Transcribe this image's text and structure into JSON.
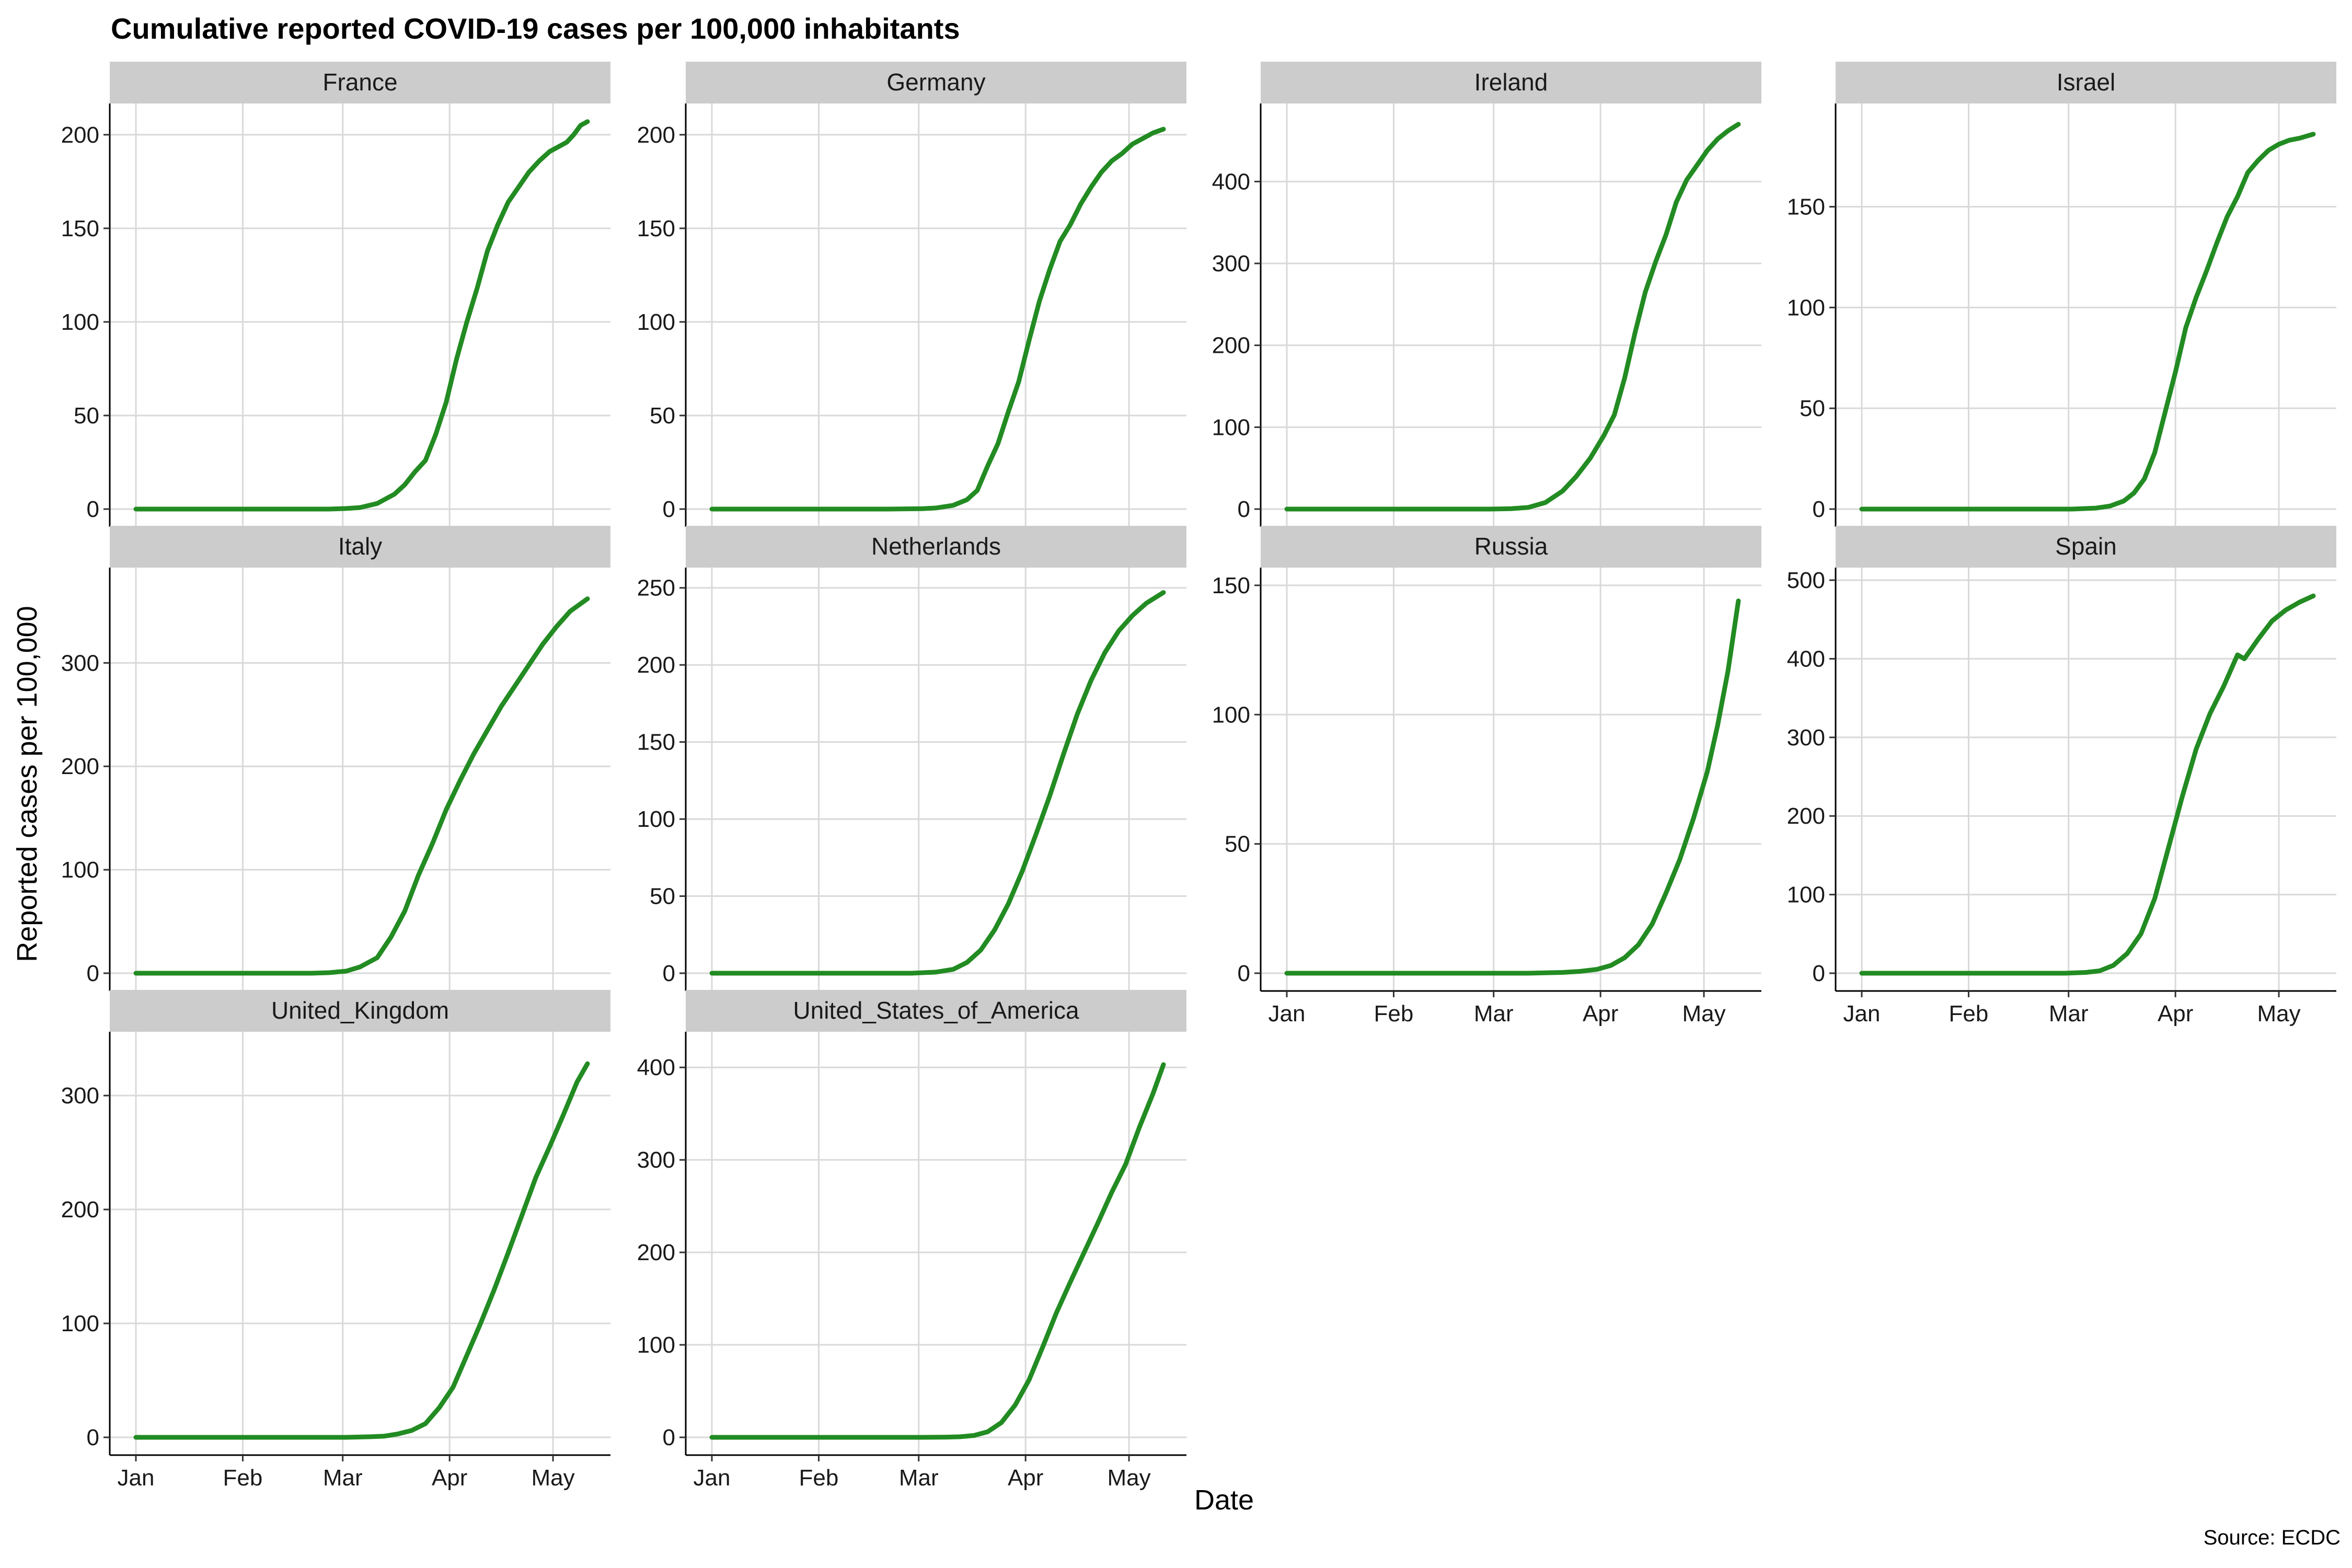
{
  "chart_data": {
    "type": "line",
    "title": "Cumulative reported COVID-19 cases per 100,000 inhabitants",
    "xlabel": "Date",
    "ylabel": "Reported cases per 100,000",
    "caption": "Source: ECDC",
    "x_tick_labels": [
      "Jan",
      "Feb",
      "Mar",
      "Apr",
      "May"
    ],
    "x_tick_days": [
      0,
      31,
      60,
      91,
      121
    ],
    "x_range": [
      "2019-12-31",
      "2020-05-10"
    ],
    "line_color": "#228B22",
    "strip_color": "#CCCCCC",
    "grid_color": "#D9D9D9",
    "grid": true,
    "panels": [
      {
        "name": "France",
        "ylim": [
          0,
          210
        ],
        "yticks": [
          0,
          50,
          100,
          150,
          200
        ],
        "x": [
          "2019-12-31",
          "2020-02-15",
          "2020-02-25",
          "2020-03-01",
          "2020-03-05",
          "2020-03-10",
          "2020-03-15",
          "2020-03-18",
          "2020-03-21",
          "2020-03-24",
          "2020-03-27",
          "2020-03-30",
          "2020-04-02",
          "2020-04-05",
          "2020-04-08",
          "2020-04-11",
          "2020-04-14",
          "2020-04-17",
          "2020-04-20",
          "2020-04-23",
          "2020-04-26",
          "2020-04-29",
          "2020-05-02",
          "2020-05-04",
          "2020-05-06",
          "2020-05-08",
          "2020-05-10"
        ],
        "values": [
          0,
          0,
          0,
          0.3,
          0.8,
          3,
          8,
          13,
          20,
          26,
          40,
          57,
          80,
          100,
          118,
          138,
          152,
          164,
          172,
          180,
          186,
          191,
          194,
          196,
          200,
          205,
          207
        ]
      },
      {
        "name": "Germany",
        "ylim": [
          0,
          210
        ],
        "yticks": [
          0,
          50,
          100,
          150,
          200
        ],
        "x": [
          "2019-12-31",
          "2020-02-20",
          "2020-03-01",
          "2020-03-05",
          "2020-03-10",
          "2020-03-14",
          "2020-03-17",
          "2020-03-20",
          "2020-03-23",
          "2020-03-26",
          "2020-03-29",
          "2020-04-01",
          "2020-04-04",
          "2020-04-07",
          "2020-04-10",
          "2020-04-13",
          "2020-04-16",
          "2020-04-19",
          "2020-04-22",
          "2020-04-25",
          "2020-04-28",
          "2020-05-01",
          "2020-05-04",
          "2020-05-07",
          "2020-05-10"
        ],
        "values": [
          0,
          0,
          0.2,
          0.6,
          2,
          5,
          10,
          23,
          35,
          52,
          68,
          90,
          111,
          128,
          143,
          152,
          163,
          172,
          180,
          186,
          190,
          195,
          198,
          201,
          203
        ]
      },
      {
        "name": "Ireland",
        "ylim": [
          0,
          480
        ],
        "yticks": [
          0,
          100,
          200,
          300,
          400
        ],
        "x": [
          "2019-12-31",
          "2020-02-28",
          "2020-03-05",
          "2020-03-10",
          "2020-03-15",
          "2020-03-20",
          "2020-03-24",
          "2020-03-28",
          "2020-04-01",
          "2020-04-04",
          "2020-04-07",
          "2020-04-10",
          "2020-04-13",
          "2020-04-16",
          "2020-04-19",
          "2020-04-22",
          "2020-04-25",
          "2020-04-28",
          "2020-05-01",
          "2020-05-04",
          "2020-05-07",
          "2020-05-10"
        ],
        "values": [
          0,
          0,
          0.5,
          2,
          8,
          22,
          40,
          62,
          90,
          115,
          160,
          215,
          265,
          302,
          335,
          375,
          402,
          420,
          438,
          452,
          462,
          470
        ]
      },
      {
        "name": "Israel",
        "ylim": [
          0,
          195
        ],
        "yticks": [
          0,
          50,
          100,
          150
        ],
        "x": [
          "2019-12-31",
          "2020-03-01",
          "2020-03-08",
          "2020-03-12",
          "2020-03-16",
          "2020-03-19",
          "2020-03-22",
          "2020-03-25",
          "2020-03-28",
          "2020-03-31",
          "2020-04-03",
          "2020-04-06",
          "2020-04-09",
          "2020-04-12",
          "2020-04-15",
          "2020-04-18",
          "2020-04-21",
          "2020-04-24",
          "2020-04-27",
          "2020-04-30",
          "2020-05-03",
          "2020-05-06",
          "2020-05-10"
        ],
        "values": [
          0,
          0,
          0.5,
          1.5,
          4,
          8,
          15,
          28,
          48,
          68,
          90,
          105,
          118,
          132,
          145,
          155,
          167,
          173,
          178,
          181,
          183,
          184,
          186
        ]
      },
      {
        "name": "Italy",
        "ylim": [
          0,
          380
        ],
        "yticks": [
          0,
          100,
          200,
          300
        ],
        "x": [
          "2019-12-31",
          "2020-02-20",
          "2020-02-25",
          "2020-03-01",
          "2020-03-05",
          "2020-03-10",
          "2020-03-14",
          "2020-03-18",
          "2020-03-22",
          "2020-03-26",
          "2020-03-30",
          "2020-04-03",
          "2020-04-07",
          "2020-04-11",
          "2020-04-15",
          "2020-04-19",
          "2020-04-23",
          "2020-04-27",
          "2020-05-01",
          "2020-05-05",
          "2020-05-10"
        ],
        "values": [
          0,
          0,
          0.5,
          2,
          6,
          15,
          35,
          60,
          95,
          125,
          158,
          186,
          212,
          235,
          258,
          278,
          298,
          318,
          335,
          350,
          362
        ]
      },
      {
        "name": "Netherlands",
        "ylim": [
          0,
          255
        ],
        "yticks": [
          0,
          50,
          100,
          150,
          200,
          250
        ],
        "x": [
          "2019-12-31",
          "2020-02-27",
          "2020-03-05",
          "2020-03-10",
          "2020-03-14",
          "2020-03-18",
          "2020-03-22",
          "2020-03-26",
          "2020-03-30",
          "2020-04-03",
          "2020-04-07",
          "2020-04-11",
          "2020-04-15",
          "2020-04-19",
          "2020-04-23",
          "2020-04-27",
          "2020-05-01",
          "2020-05-05",
          "2020-05-10"
        ],
        "values": [
          0,
          0,
          0.7,
          2.5,
          7,
          15,
          28,
          45,
          66,
          90,
          115,
          142,
          168,
          190,
          208,
          222,
          232,
          240,
          247
        ]
      },
      {
        "name": "Russia",
        "ylim": [
          0,
          152
        ],
        "yticks": [
          0,
          50,
          100,
          150
        ],
        "x": [
          "2019-12-31",
          "2020-03-10",
          "2020-03-20",
          "2020-03-25",
          "2020-03-30",
          "2020-04-03",
          "2020-04-07",
          "2020-04-11",
          "2020-04-15",
          "2020-04-19",
          "2020-04-23",
          "2020-04-27",
          "2020-05-01",
          "2020-05-04",
          "2020-05-07",
          "2020-05-10"
        ],
        "values": [
          0,
          0,
          0.3,
          0.7,
          1.5,
          3,
          6,
          11,
          19,
          31,
          44,
          60,
          78,
          96,
          117,
          144
        ]
      },
      {
        "name": "Spain",
        "ylim": [
          0,
          500
        ],
        "yticks": [
          0,
          100,
          200,
          300,
          400,
          500
        ],
        "x": [
          "2019-12-31",
          "2020-02-28",
          "2020-03-05",
          "2020-03-09",
          "2020-03-13",
          "2020-03-17",
          "2020-03-21",
          "2020-03-25",
          "2020-03-29",
          "2020-04-02",
          "2020-04-06",
          "2020-04-10",
          "2020-04-14",
          "2020-04-18",
          "2020-04-20",
          "2020-04-24",
          "2020-04-28",
          "2020-05-02",
          "2020-05-06",
          "2020-05-10"
        ],
        "values": [
          0,
          0,
          1,
          3,
          10,
          25,
          50,
          95,
          160,
          225,
          285,
          330,
          365,
          405,
          400,
          425,
          448,
          462,
          472,
          480
        ]
      },
      {
        "name": "United_Kingdom",
        "ylim": [
          0,
          345
        ],
        "yticks": [
          0,
          100,
          200,
          300
        ],
        "x": [
          "2019-12-31",
          "2020-03-01",
          "2020-03-08",
          "2020-03-12",
          "2020-03-16",
          "2020-03-20",
          "2020-03-24",
          "2020-03-28",
          "2020-04-01",
          "2020-04-05",
          "2020-04-09",
          "2020-04-13",
          "2020-04-17",
          "2020-04-21",
          "2020-04-25",
          "2020-04-29",
          "2020-05-03",
          "2020-05-07",
          "2020-05-10"
        ],
        "values": [
          0,
          0,
          0.5,
          1,
          3,
          6,
          12,
          26,
          44,
          72,
          100,
          130,
          162,
          195,
          228,
          255,
          283,
          312,
          328
        ]
      },
      {
        "name": "United_States_of_America",
        "ylim": [
          0,
          425
        ],
        "yticks": [
          0,
          100,
          200,
          300,
          400
        ],
        "x": [
          "2019-12-31",
          "2020-03-01",
          "2020-03-08",
          "2020-03-12",
          "2020-03-16",
          "2020-03-20",
          "2020-03-24",
          "2020-03-28",
          "2020-04-01",
          "2020-04-05",
          "2020-04-09",
          "2020-04-13",
          "2020-04-17",
          "2020-04-21",
          "2020-04-25",
          "2020-04-29",
          "2020-05-03",
          "2020-05-07",
          "2020-05-10"
        ],
        "values": [
          0,
          0,
          0.2,
          0.6,
          2,
          6,
          16,
          35,
          62,
          98,
          135,
          168,
          200,
          232,
          265,
          295,
          335,
          372,
          403
        ]
      }
    ]
  }
}
